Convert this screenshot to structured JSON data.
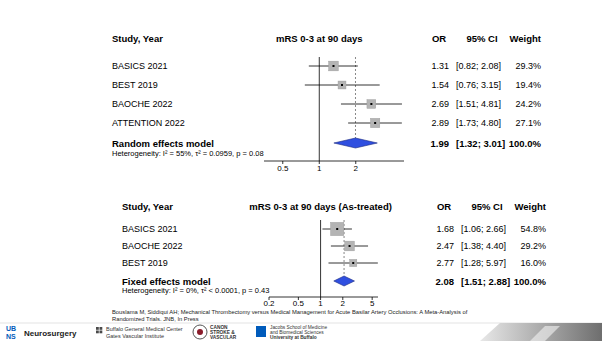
{
  "chart_data": [
    {
      "type": "forest",
      "title": "mRS 0-3 at 90 days",
      "columns": [
        "Study, Year",
        "OR",
        "95% CI",
        "Weight"
      ],
      "categories": [
        "BASICS 2021",
        "BEST 2019",
        "BAOCHE 2022",
        "ATTENTION 2022"
      ],
      "values": [
        1.31,
        1.54,
        2.69,
        2.89
      ],
      "ci_low": [
        0.82,
        0.76,
        1.51,
        1.73
      ],
      "ci_high": [
        2.08,
        3.15,
        4.81,
        4.8
      ],
      "ci_labels": [
        "[0.82; 2.08]",
        "[0.76; 3.15]",
        "[1.51; 4.81]",
        "[1.73; 4.80]"
      ],
      "weights": [
        29.3,
        19.4,
        24.2,
        27.1
      ],
      "weight_labels": [
        "29.3%",
        "19.4%",
        "24.2%",
        "27.1%"
      ],
      "summary": {
        "name": "Random effects model",
        "value": 1.99,
        "ci_low": 1.32,
        "ci_high": 3.01,
        "ci_label": "[1.32; 3.01]",
        "weight_label": "100.0%"
      },
      "heterogeneity": "Heterogeneity: I² = 55%, τ² = 0.0959, p = 0.08",
      "reference_line": 1,
      "log": "x",
      "xlim": [
        0.35,
        5
      ],
      "xticks": [
        0.5,
        1,
        2
      ],
      "color": "#2f4fe0"
    },
    {
      "type": "forest",
      "title": "mRS 0-3 at 90 days (As-treated)",
      "columns": [
        "Study, Year",
        "OR",
        "95% CI",
        "Weight"
      ],
      "categories": [
        "BASICS 2021",
        "BAOCHE 2022",
        "BEST 2019"
      ],
      "values": [
        1.68,
        2.47,
        2.77
      ],
      "ci_low": [
        1.06,
        1.38,
        1.28
      ],
      "ci_high": [
        2.66,
        4.4,
        5.97
      ],
      "ci_labels": [
        "[1.06; 2.66]",
        "[1.38; 4.40]",
        "[1.28; 5.97]"
      ],
      "weights": [
        54.8,
        29.2,
        16.0
      ],
      "weight_labels": [
        "54.8%",
        "29.2%",
        "16.0%"
      ],
      "summary": {
        "name": "Fixed effects model",
        "value": 2.08,
        "ci_low": 1.51,
        "ci_high": 2.88,
        "ci_label": "[1.51; 2.88]",
        "weight_label": "100.0%"
      },
      "heterogeneity": "Heterogeneity: I² = 0%, τ² < 0.0001, p = 0.43",
      "reference_line": 1,
      "log": "x",
      "xlim": [
        0.2,
        6
      ],
      "xticks": [
        0.2,
        0.5,
        1,
        2,
        5
      ],
      "color": "#2f4fe0"
    }
  ],
  "citation": [
    "Bouslama M, Siddiqui AH; Mechanical Thrombectomy versus Medical Management for Acute Basilar Artery Occlusions: A Meta-Analysis of",
    "Randomized Trials. JNB, In Press"
  ],
  "footer": {
    "ub_mark": "UB",
    "ns_mark": "NS",
    "department": "Neurosurgery",
    "hospital": [
      "Buffalo General Medical Center",
      "Gates Vascular Institute"
    ],
    "canon": [
      "CANON",
      "STROKE &",
      "VASCULAR"
    ],
    "school": [
      "Jacobs School of Medicine",
      "and Biomedical Sciences",
      "University at Buffalo"
    ]
  }
}
